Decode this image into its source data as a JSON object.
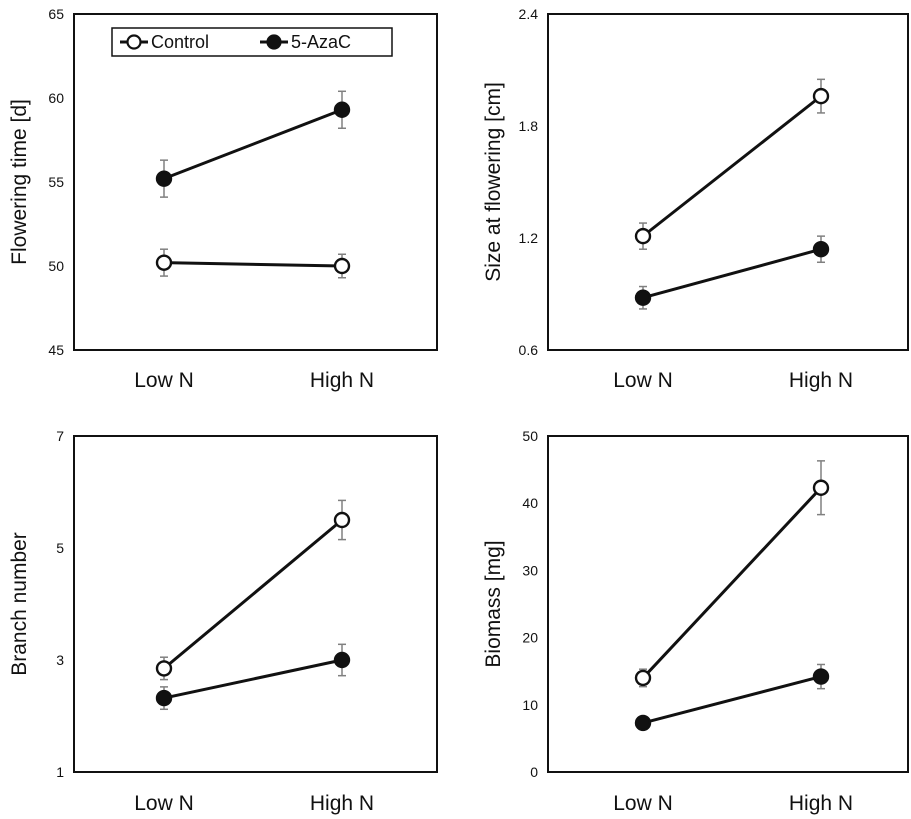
{
  "figure": {
    "legend": {
      "placement": "top-left of first panel",
      "entries": [
        {
          "name": "Control",
          "marker": "open-circle"
        },
        {
          "name": "5-AzaC",
          "marker": "filled-circle"
        }
      ]
    }
  },
  "colors": {
    "line": "#111111",
    "error_bar": "#808080",
    "open_marker_fill": "#ffffff",
    "filled_marker_fill": "#111111",
    "background": "#ffffff"
  },
  "chart_data": [
    {
      "type": "line",
      "ylabel": "Flowering time [d]",
      "xlabel": "",
      "categories": [
        "Low N",
        "High N"
      ],
      "ylim": [
        45,
        65
      ],
      "yticks": [
        "45",
        "50",
        "55",
        "60",
        "65"
      ],
      "grid": false,
      "series": [
        {
          "name": "Control",
          "marker": "open",
          "values": [
            50.2,
            50.0
          ],
          "errors": [
            0.8,
            0.7
          ]
        },
        {
          "name": "5-AzaC",
          "marker": "filled",
          "values": [
            55.2,
            59.3
          ],
          "errors": [
            1.1,
            1.1
          ]
        }
      ]
    },
    {
      "type": "line",
      "ylabel": "Size at flowering [cm]",
      "xlabel": "",
      "categories": [
        "Low N",
        "High N"
      ],
      "ylim": [
        0.6,
        2.4
      ],
      "yticks": [
        "0.6",
        "1.2",
        "1.8",
        "2.4"
      ],
      "grid": false,
      "series": [
        {
          "name": "Control",
          "marker": "open",
          "values": [
            1.21,
            1.96
          ],
          "errors": [
            0.07,
            0.09
          ]
        },
        {
          "name": "5-AzaC",
          "marker": "filled",
          "values": [
            0.88,
            1.14
          ],
          "errors": [
            0.06,
            0.07
          ]
        }
      ]
    },
    {
      "type": "line",
      "ylabel": "Branch number",
      "xlabel": "",
      "categories": [
        "Low N",
        "High N"
      ],
      "ylim": [
        1,
        7
      ],
      "yticks": [
        "1",
        "3",
        "5",
        "7"
      ],
      "grid": false,
      "series": [
        {
          "name": "Control",
          "marker": "open",
          "values": [
            2.85,
            5.5
          ],
          "errors": [
            0.2,
            0.35
          ]
        },
        {
          "name": "5-AzaC",
          "marker": "filled",
          "values": [
            2.32,
            3.0
          ],
          "errors": [
            0.2,
            0.28
          ]
        }
      ]
    },
    {
      "type": "line",
      "ylabel": "Biomass [mg]",
      "xlabel": "",
      "categories": [
        "Low N",
        "High N"
      ],
      "ylim": [
        0,
        50
      ],
      "yticks": [
        "0",
        "10",
        "20",
        "30",
        "40",
        "50"
      ],
      "grid": false,
      "series": [
        {
          "name": "Control",
          "marker": "open",
          "values": [
            14.0,
            42.3
          ],
          "errors": [
            1.3,
            4.0
          ]
        },
        {
          "name": "5-AzaC",
          "marker": "filled",
          "values": [
            7.3,
            14.2
          ],
          "errors": [
            0.4,
            1.8
          ]
        }
      ]
    }
  ]
}
